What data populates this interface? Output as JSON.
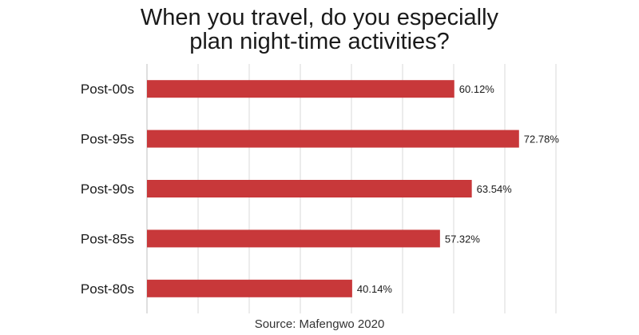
{
  "chart_data": {
    "type": "bar",
    "orientation": "horizontal",
    "title_lines": [
      "When you travel, do you especially",
      "plan night-time activities?"
    ],
    "categories": [
      "Post-00s",
      "Post-95s",
      "Post-90s",
      "Post-85s",
      "Post-80s"
    ],
    "values": [
      60.12,
      72.78,
      63.54,
      57.32,
      40.14
    ],
    "value_labels": [
      "60.12%",
      "72.78%",
      "63.54%",
      "57.32%",
      "40.14%"
    ],
    "xlim": [
      0,
      80
    ],
    "grid": true,
    "bar_color": "#c8383a",
    "source": "Source: Mafengwo 2020"
  }
}
